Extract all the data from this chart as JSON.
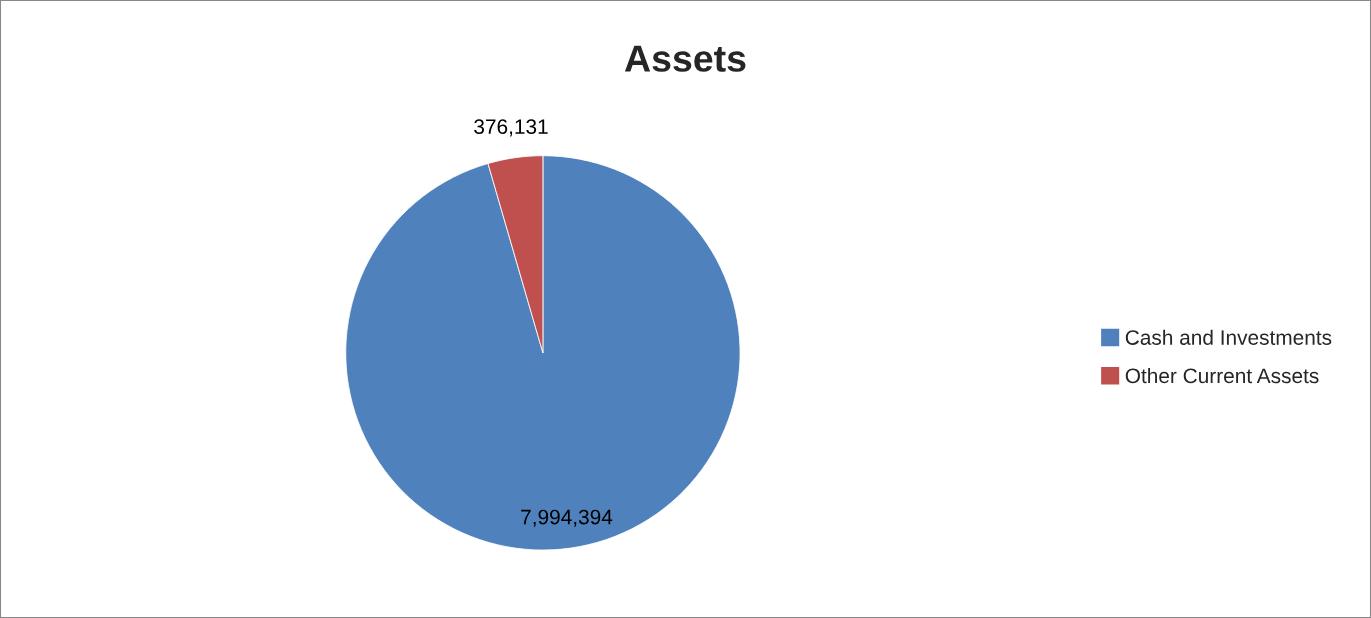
{
  "chart_data": {
    "type": "pie",
    "title": "Assets",
    "categories": [
      "Cash and Investments",
      "Other Current Assets"
    ],
    "values": [
      7994394,
      376131
    ],
    "colors": [
      "#4f81bd",
      "#c0504d"
    ],
    "value_labels": [
      "7,994,394",
      "376,131"
    ],
    "legend": "right"
  }
}
